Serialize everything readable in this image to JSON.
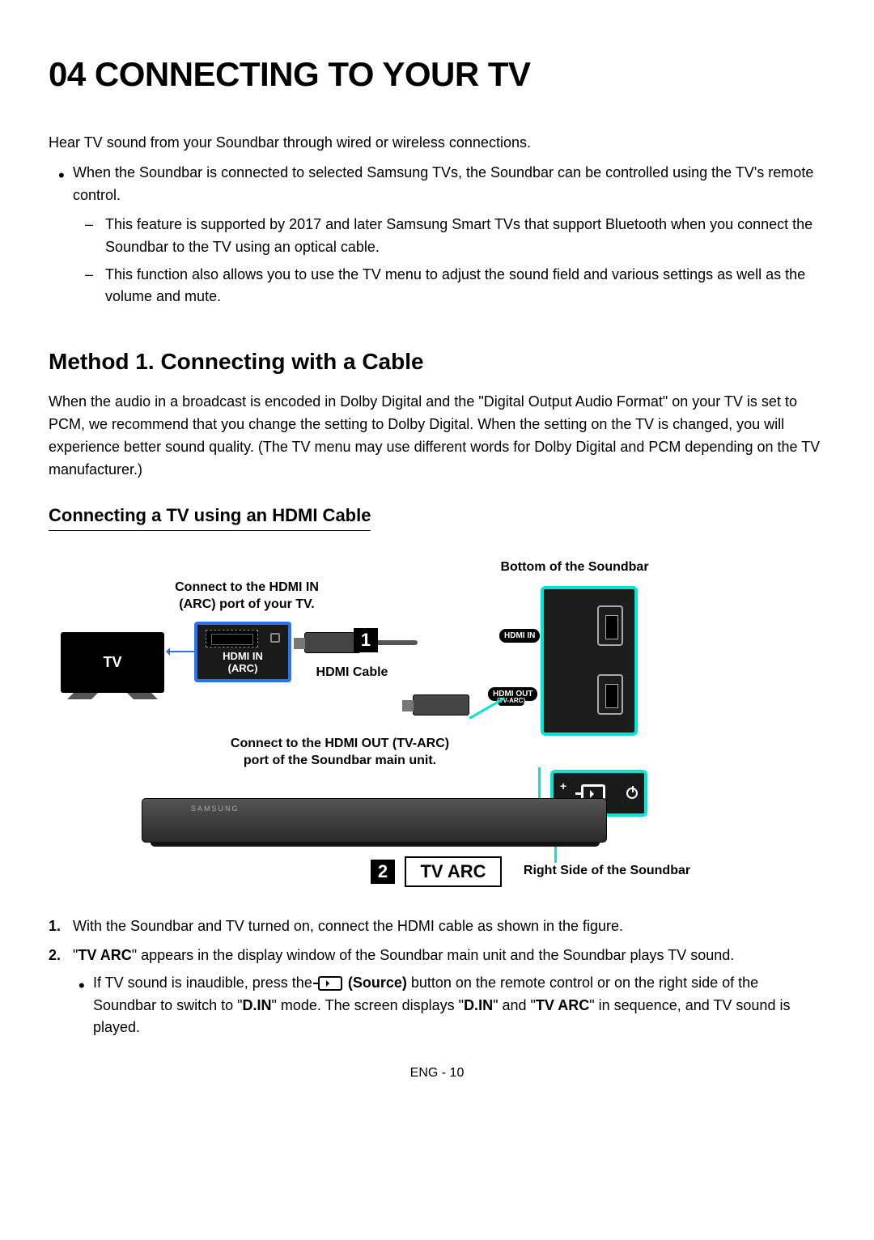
{
  "title": "04   CONNECTING TO YOUR TV",
  "intro": "Hear TV sound from your Soundbar through wired or wireless connections.",
  "bullet1": "When the Soundbar is connected to selected Samsung TVs, the Soundbar can be controlled using the TV's remote control.",
  "dash1": "This feature is supported by 2017 and later Samsung Smart TVs that support Bluetooth when you connect the Soundbar to the TV using an optical cable.",
  "dash2": "This function also allows you to use the TV menu to adjust the sound field and various settings as well as the volume and mute.",
  "method1_title": "Method 1. Connecting with a Cable",
  "method1_intro": "When the audio in a broadcast is encoded in Dolby Digital and the \"Digital Output Audio Format\" on your TV is set to PCM, we recommend that you change the setting to Dolby Digital. When the setting on the TV is changed, you will experience better sound quality. (The TV menu may use different words for Dolby Digital and PCM depending on the TV manufacturer.)",
  "sub_title": "Connecting a TV using an HDMI Cable",
  "diagram": {
    "bottom_sb": "Bottom of the Soundbar",
    "connect_tv_1": "Connect to the HDMI IN",
    "connect_tv_2": "(ARC) port of your TV.",
    "tv_label": "TV",
    "tv_port_1": "HDMI IN",
    "tv_port_2": "(ARC)",
    "hdmi_cable": "HDMI Cable",
    "hdmi_in_pill": "HDMI IN",
    "hdmi_out_pill": "HDMI OUT",
    "hdmi_out_sub": "(TV-ARC)",
    "connect_sb_1": "Connect to the HDMI OUT (TV-ARC)",
    "connect_sb_2": "port of the Soundbar main unit.",
    "tv_arc": "TV ARC",
    "right_sb": "Right Side of the Soundbar",
    "brand": "SAMSUNG",
    "badge1": "1",
    "badge2": "2",
    "plus": "+",
    "minus": "–"
  },
  "step1": "With the Soundbar and TV turned on, connect the HDMI cable as shown in the figure.",
  "step2_pre": "\"",
  "step2_b1": "TV ARC",
  "step2_post": "\" appears in the display window of the Soundbar main unit and the Soundbar plays TV sound.",
  "step2_sub_pre": "If TV sound is inaudible, press the ",
  "step2_sub_b1": "(Source)",
  "step2_sub_mid1": " button on the remote control or on the right side of the Soundbar to switch to \"",
  "step2_sub_b2": "D.IN",
  "step2_sub_mid2": "\" mode. The screen displays \"",
  "step2_sub_b3": "D.IN",
  "step2_sub_mid3": "\" and \"",
  "step2_sub_b4": "TV ARC",
  "step2_sub_end": "\" in sequence, and TV sound is played.",
  "footer": "ENG - 10",
  "colors": {
    "blue": "#2874f0",
    "teal": "#00e5d4"
  }
}
